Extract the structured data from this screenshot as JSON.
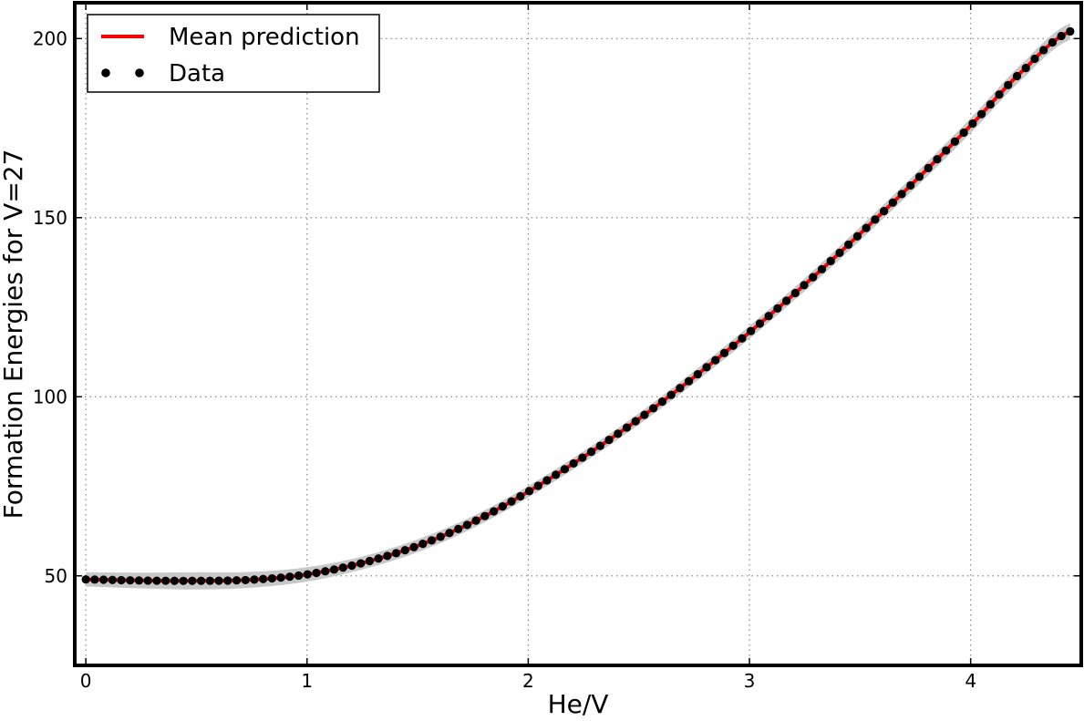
{
  "chart_data": {
    "type": "line",
    "title": "",
    "xlabel": "He/V",
    "ylabel": "Formation Energies for V=27",
    "xlim": [
      -0.05,
      4.5
    ],
    "ylim": [
      25,
      210
    ],
    "x_ticks": [
      0,
      1,
      2,
      3,
      4
    ],
    "y_ticks": [
      50,
      100,
      150,
      200
    ],
    "grid": true,
    "legend_position": "top-left",
    "colors": {
      "mean": "#ff0000",
      "data": "#000000",
      "band": "#c8c8c8",
      "grid": "#888888"
    },
    "series": [
      {
        "name": "Mean prediction",
        "style": "line",
        "x": [
          0,
          0.25,
          0.5,
          0.75,
          1.0,
          1.25,
          1.5,
          1.75,
          2.0,
          2.25,
          2.5,
          2.75,
          3.0,
          3.25,
          3.5,
          3.75,
          4.0,
          4.25,
          4.45
        ],
        "y": [
          49.0,
          48.7,
          48.6,
          48.9,
          50.4,
          53.6,
          58.4,
          65.0,
          73.5,
          83.2,
          93.8,
          105.5,
          118.0,
          131.3,
          145.5,
          160.3,
          175.7,
          191.8,
          202.0
        ]
      },
      {
        "name": "Data",
        "style": "points",
        "x": [
          0,
          0.25,
          0.5,
          0.75,
          1.0,
          1.25,
          1.5,
          1.75,
          2.0,
          2.25,
          2.5,
          2.75,
          3.0,
          3.25,
          3.5,
          3.75,
          4.0,
          4.25,
          4.45
        ],
        "y": [
          49.0,
          48.7,
          48.6,
          48.9,
          50.4,
          53.6,
          58.4,
          65.0,
          73.5,
          83.2,
          93.8,
          105.5,
          118.0,
          131.3,
          145.5,
          160.3,
          175.7,
          191.8,
          202.0
        ]
      }
    ],
    "uncertainty_band": {
      "x": [
        0,
        0.25,
        0.5,
        0.75,
        1.0,
        1.25,
        1.5,
        1.75,
        2.0,
        2.25,
        2.5,
        2.75,
        3.0,
        3.25,
        3.5,
        3.75,
        4.0,
        4.25,
        4.45
      ],
      "halfwidth": [
        2.0,
        2.2,
        2.4,
        2.2,
        2.0,
        1.8,
        1.8,
        1.7,
        1.6,
        1.6,
        1.6,
        1.7,
        1.8,
        1.8,
        1.9,
        2.0,
        2.1,
        2.2,
        2.3
      ]
    }
  }
}
